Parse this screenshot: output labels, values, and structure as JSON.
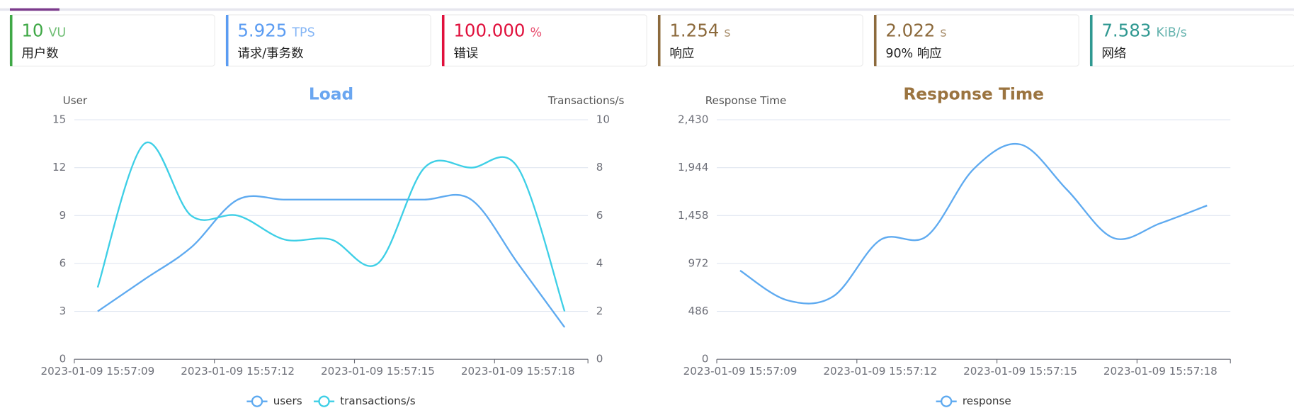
{
  "cards": [
    {
      "value": "10",
      "unit": "VU",
      "label": "用户数",
      "color": "#3fa846"
    },
    {
      "value": "5.925",
      "unit": "TPS",
      "label": "请求/事务数",
      "color": "#5b9cf2"
    },
    {
      "value": "100.000",
      "unit": "%",
      "label": "错误",
      "color": "#e0103c"
    },
    {
      "value": "1.254",
      "unit": "s",
      "label": "响应",
      "color": "#8c6a3c"
    },
    {
      "value": "2.022",
      "unit": "s",
      "label": "90% 响应",
      "color": "#8c6a3c"
    },
    {
      "value": "7.583",
      "unit": "KiB/s",
      "label": "网络",
      "color": "#2f9891"
    }
  ],
  "chart_data": [
    {
      "type": "line",
      "title": "Load",
      "title_color": "#6aa6f0",
      "ylabel": "User",
      "y2label": "Transactions/s",
      "categories": [
        "2023-01-09 15:57:09",
        null,
        null,
        "2023-01-09 15:57:12",
        null,
        null,
        "2023-01-09 15:57:15",
        null,
        null,
        "2023-01-09 15:57:18",
        null
      ],
      "series": [
        {
          "name": "users",
          "color": "#5eaaf0",
          "values": [
            3,
            5,
            7,
            10,
            10,
            10,
            10,
            10,
            10,
            6,
            2
          ]
        },
        {
          "name": "transactions/s",
          "color": "#3ecfe6",
          "axis": "y2",
          "values": [
            3,
            9,
            6,
            6,
            5,
            5,
            4,
            8,
            8,
            8,
            2
          ]
        }
      ],
      "ylim": [
        0,
        15
      ],
      "yticks": [
        0,
        3,
        6,
        9,
        12,
        15
      ],
      "y2lim": [
        0,
        10
      ],
      "y2ticks": [
        0,
        2,
        4,
        6,
        8,
        10
      ],
      "grid": true,
      "smooth": true
    },
    {
      "type": "line",
      "title": "Response Time",
      "title_color": "#9b7440",
      "ylabel": "Response Time",
      "categories": [
        "2023-01-09 15:57:09",
        null,
        null,
        "2023-01-09 15:57:12",
        null,
        null,
        "2023-01-09 15:57:15",
        null,
        null,
        "2023-01-09 15:57:18",
        null
      ],
      "series": [
        {
          "name": "response",
          "color": "#5eaaf0",
          "values": [
            900,
            600,
            640,
            1210,
            1250,
            1930,
            2180,
            1720,
            1230,
            1380,
            1560
          ]
        }
      ],
      "ylim": [
        0,
        2430
      ],
      "yticks": [
        0,
        486,
        972,
        {
          "value": 1458,
          "label": "1,458"
        },
        {
          "value": 1944,
          "label": "1,944"
        },
        {
          "value": 2430,
          "label": "2,430"
        }
      ],
      "grid": true,
      "smooth": true
    }
  ]
}
